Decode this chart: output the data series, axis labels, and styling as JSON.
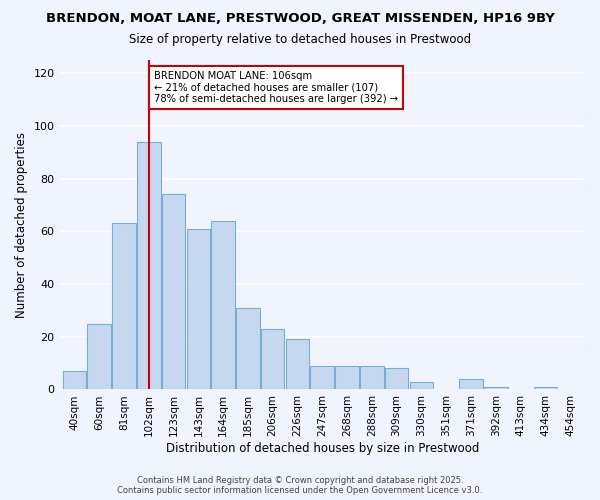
{
  "title": "BRENDON, MOAT LANE, PRESTWOOD, GREAT MISSENDEN, HP16 9BY",
  "subtitle": "Size of property relative to detached houses in Prestwood",
  "xlabel": "Distribution of detached houses by size in Prestwood",
  "ylabel": "Number of detached properties",
  "footer_line1": "Contains HM Land Registry data © Crown copyright and database right 2025.",
  "footer_line2": "Contains public sector information licensed under the Open Government Licence v3.0.",
  "bar_labels": [
    "40sqm",
    "60sqm",
    "81sqm",
    "102sqm",
    "123sqm",
    "143sqm",
    "164sqm",
    "185sqm",
    "206sqm",
    "226sqm",
    "247sqm",
    "268sqm",
    "288sqm",
    "309sqm",
    "330sqm",
    "351sqm",
    "371sqm",
    "392sqm",
    "413sqm",
    "434sqm",
    "454sqm"
  ],
  "bar_values": [
    7,
    25,
    63,
    94,
    74,
    61,
    64,
    31,
    23,
    19,
    9,
    9,
    9,
    8,
    3,
    0,
    4,
    1,
    0,
    1,
    0
  ],
  "bar_color": "#c5d8f0",
  "bar_edge_color": "#7badd4",
  "background_color": "#f0f4ff",
  "grid_color": "#ffffff",
  "vline_x_index": 3,
  "vline_color": "#cc0000",
  "annotation_text": "BRENDON MOAT LANE: 106sqm\n← 21% of detached houses are smaller (107)\n78% of semi-detached houses are larger (392) →",
  "annotation_box_color": "#ffffff",
  "annotation_box_edge_color": "#cc0000",
  "ylim": [
    0,
    125
  ],
  "yticks": [
    0,
    20,
    40,
    60,
    80,
    100,
    120
  ]
}
